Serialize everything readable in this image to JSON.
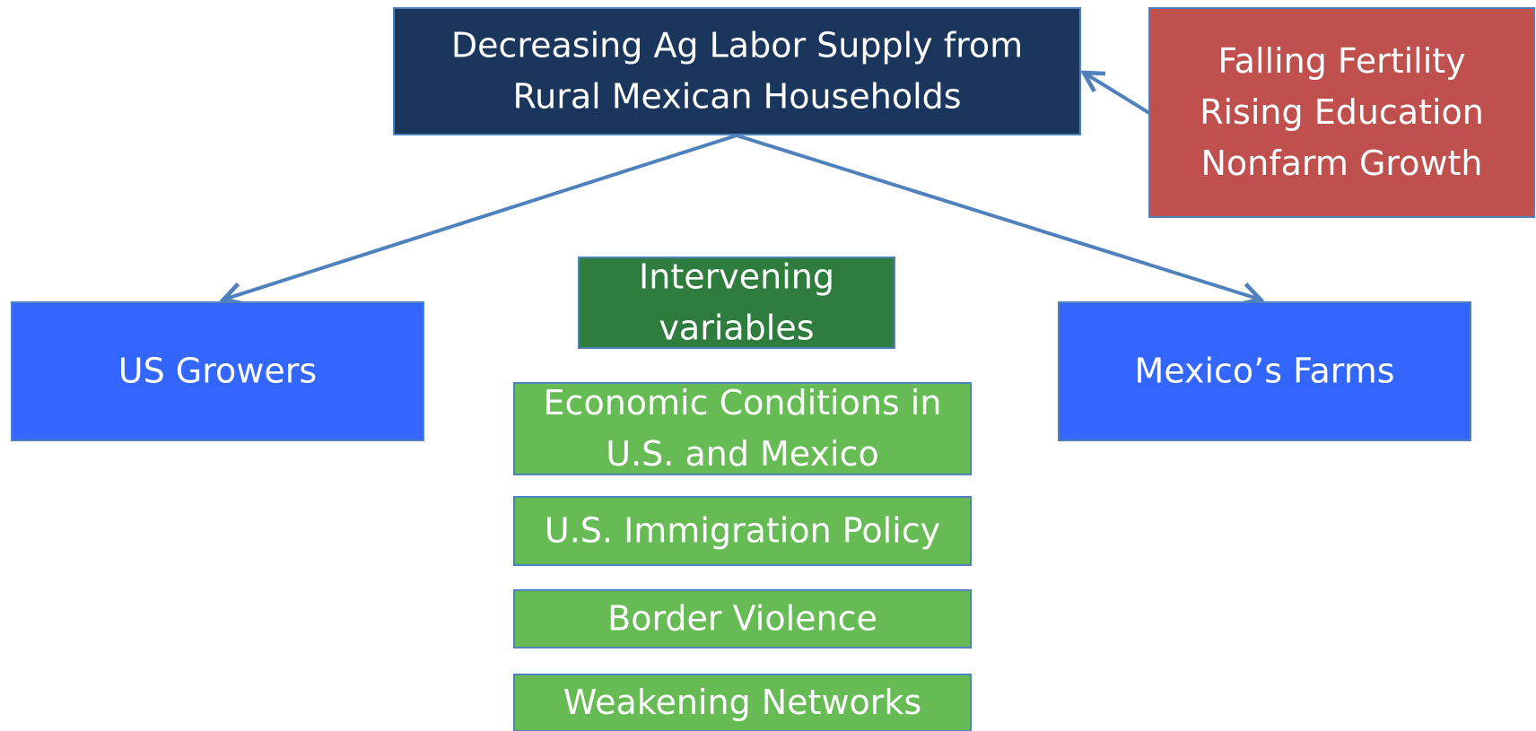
{
  "nodes": [
    {
      "lines": [
        "Decreasing Ag Labor Supply from",
        "Rural Mexican Households"
      ]
    },
    {
      "lines": [
        "Falling Fertility",
        "Rising Education",
        "Nonfarm Growth"
      ]
    },
    {
      "lines": [
        "US Growers"
      ]
    },
    {
      "lines": [
        "Mexico’s Farms"
      ]
    },
    {
      "lines": [
        "Intervening",
        "variables"
      ]
    },
    {
      "lines": [
        "Economic Conditions in",
        "U.S. and Mexico"
      ]
    },
    {
      "lines": [
        "U.S. Immigration Policy"
      ]
    },
    {
      "lines": [
        "Border Violence"
      ]
    },
    {
      "lines": [
        "Weakening Networks"
      ]
    }
  ]
}
